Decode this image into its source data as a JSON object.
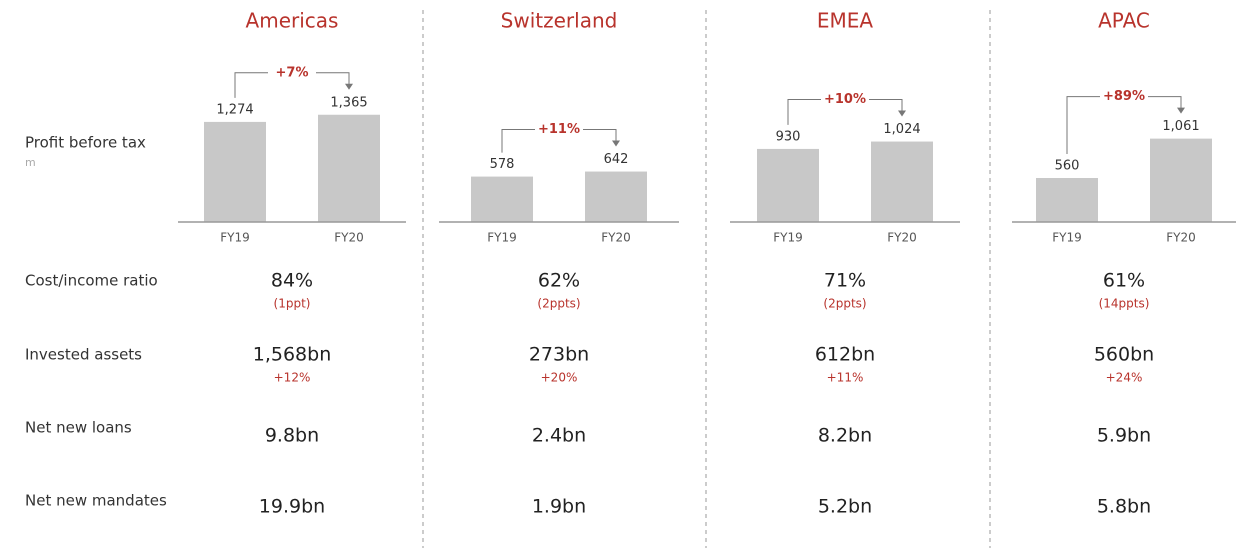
{
  "row_labels": [
    "Profit before tax",
    "Cost/income ratio",
    "Invested assets",
    "Net new loans",
    "Net new mandates"
  ],
  "unit": "m",
  "chart_data": [
    {
      "type": "bar",
      "title": "Americas",
      "categories": [
        "FY19",
        "FY20"
      ],
      "values": [
        1274,
        1365
      ],
      "value_labels": [
        "1,274",
        "1,365"
      ],
      "annotation": "+7%",
      "color": "#c8c8c8",
      "ylim": [
        0,
        1400
      ]
    },
    {
      "type": "bar",
      "title": "Switzerland",
      "categories": [
        "FY19",
        "FY20"
      ],
      "values": [
        578,
        642
      ],
      "annotation": "+11%",
      "color": "#c8c8c8",
      "ylim": [
        0,
        1400
      ]
    },
    {
      "type": "bar",
      "title": "EMEA",
      "categories": [
        "FY19",
        "FY20"
      ],
      "values": [
        930,
        1024
      ],
      "value_labels": [
        "930",
        "1,024"
      ],
      "annotation": "+10%",
      "color": "#c8c8c8",
      "ylim": [
        0,
        1400
      ]
    },
    {
      "type": "bar",
      "title": "APAC",
      "categories": [
        "FY19",
        "FY20"
      ],
      "values": [
        560,
        1061
      ],
      "value_labels": [
        "560",
        "1,061"
      ],
      "annotation": "+89%",
      "color": "#c8c8c8",
      "ylim": [
        0,
        1400
      ]
    }
  ],
  "metrics": [
    {
      "cost_income": "84%",
      "cost_income_change": "(1ppt)",
      "invested_assets": "1,568bn",
      "invested_assets_change": "+12%",
      "net_new_loans": "9.8bn",
      "net_new_mandates": "19.9bn"
    },
    {
      "cost_income": "62%",
      "cost_income_change": "(2ppts)",
      "invested_assets": "273bn",
      "invested_assets_change": "+20%",
      "net_new_loans": "2.4bn",
      "net_new_mandates": "1.9bn"
    },
    {
      "cost_income": "71%",
      "cost_income_change": "(2ppts)",
      "invested_assets": "612bn",
      "invested_assets_change": "+11%",
      "net_new_loans": "8.2bn",
      "net_new_mandates": "5.2bn"
    },
    {
      "cost_income": "61%",
      "cost_income_change": "(14ppts)",
      "invested_assets": "560bn",
      "invested_assets_change": "+24%",
      "net_new_loans": "5.9bn",
      "net_new_mandates": "5.8bn"
    }
  ]
}
